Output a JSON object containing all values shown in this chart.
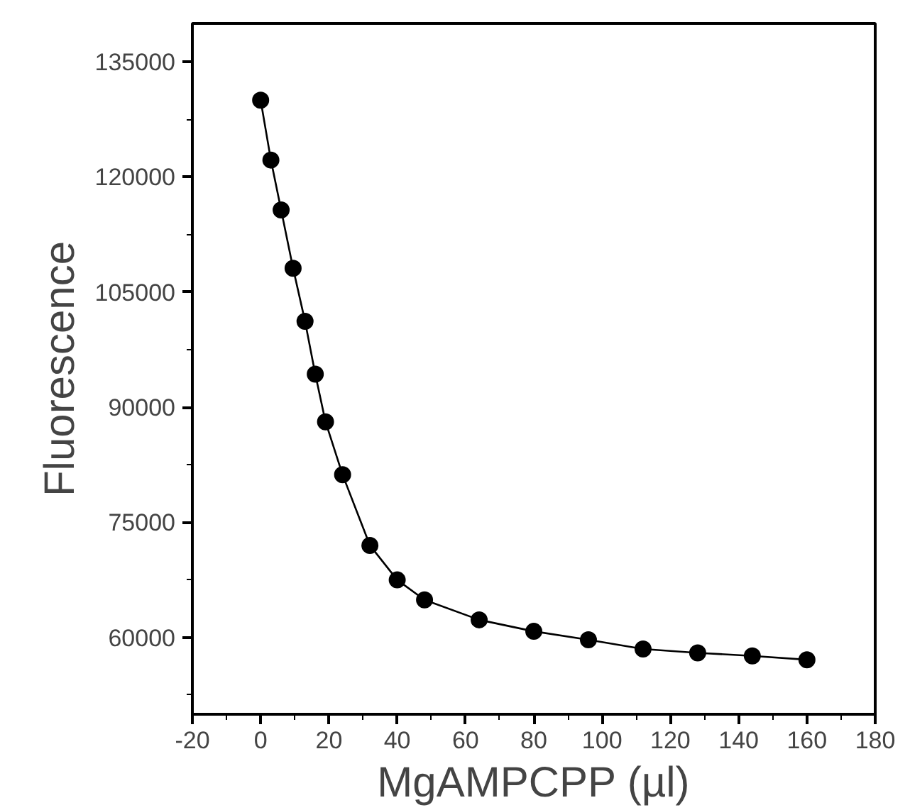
{
  "chart_data": {
    "type": "line",
    "xlabel": "MgAMPCPP (µl)",
    "ylabel": "Fluorescence",
    "x": [
      0,
      3,
      6,
      9.5,
      13,
      16,
      19,
      24,
      32,
      40,
      48,
      64,
      80,
      96,
      112,
      128,
      144,
      160
    ],
    "series": [
      {
        "color": "#000000",
        "values": [
          130000,
          122200,
          115700,
          108100,
          101200,
          94300,
          88100,
          81200,
          72000,
          67500,
          64900,
          62300,
          60800,
          59700,
          58500,
          58000,
          57600,
          57100
        ]
      }
    ],
    "xlim": [
      -20,
      180
    ],
    "ylim": [
      50000,
      140000
    ],
    "xticks": [
      -20,
      0,
      20,
      40,
      60,
      80,
      100,
      120,
      140,
      160,
      180
    ],
    "yticks": [
      60000,
      75000,
      90000,
      105000,
      120000,
      135000
    ],
    "grid": false,
    "marker": "circle",
    "line_style": "solid"
  }
}
